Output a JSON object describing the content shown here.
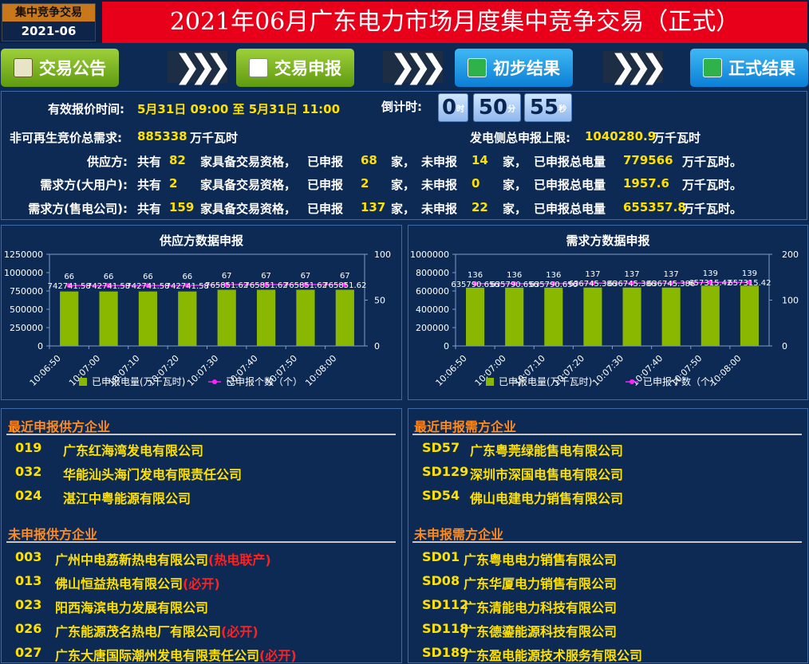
{
  "header": {
    "badge_top": "集中竞争交易",
    "badge_bottom": "2021-06",
    "title": "2021年06月广东电力市场月度集中竞争交易（正式）"
  },
  "nav": {
    "announce": "交易公告",
    "declare": "交易申报",
    "prelim": "初步结果",
    "final": "正式结果",
    "arrow": "❯❯❯"
  },
  "info": {
    "time_label": "有效报价时间:",
    "time_value": "5月31日 09:00 至 5月31日 11:00",
    "countdown_label": "倒计时:",
    "countdown": {
      "h": "0",
      "h_unit": "时",
      "m": "50",
      "m_unit": "分",
      "s": "55",
      "s_unit": "秒"
    },
    "demand_label": "非可再生竞价总需求:",
    "demand_value": "885338",
    "demand_unit": "万千瓦时",
    "gen_label": "发电侧总申报上限:",
    "gen_value": "1040280.9",
    "gen_unit": "万千瓦时",
    "rows": [
      {
        "name": "供应方:",
        "total": "82",
        "declared": "68",
        "undeclared": "14",
        "amount": "779566"
      },
      {
        "name": "需求方(大用户):",
        "total": "2",
        "declared": "2",
        "undeclared": "0",
        "amount": "1957.6"
      },
      {
        "name": "需求方(售电公司):",
        "total": "159",
        "declared": "137",
        "undeclared": "22",
        "amount": "655357.8"
      }
    ],
    "w_total": "共有",
    "w_qual": "家具备交易资格，",
    "w_declared": "已申报",
    "w_jia1": "家，",
    "w_undeclared": "未申报",
    "w_jia2": "家，",
    "w_amount": "已申报总电量",
    "w_end": "万千瓦时。"
  },
  "chart_data": [
    {
      "type": "bar",
      "title": "供应方数据申报",
      "categories": [
        "10:06:50",
        "10:07:00",
        "10:07:10",
        "10:07:20",
        "10:07:30",
        "10:07:40",
        "10:07:50",
        "10:08:00"
      ],
      "ylim": [
        0,
        1250000
      ],
      "y_ticks": [
        "1250000",
        "1000000",
        "750000",
        "500000",
        "250000",
        "0"
      ],
      "y2lim": [
        0,
        100
      ],
      "y2_ticks": [
        "100",
        "50",
        "0"
      ],
      "series": [
        {
          "name": "已申报电量(万千瓦时)",
          "kind": "bar",
          "values": [
            742741.58,
            742741.58,
            742741.58,
            742741.58,
            765851.62,
            765851.62,
            765851.62,
            765851.62
          ],
          "labels": [
            "742741.58",
            "742741.58",
            "742741.58",
            "742741.58",
            "765851.62",
            "765851.62",
            "765851.62",
            "765851.62"
          ],
          "color": "#8ab800"
        },
        {
          "name": "已申报个数（个）",
          "kind": "line",
          "axis": "right",
          "values": [
            66,
            66,
            66,
            66,
            67,
            67,
            67,
            67
          ],
          "color": "#ff22ff"
        }
      ]
    },
    {
      "type": "bar",
      "title": "需求方数据申报",
      "categories": [
        "10:06:50",
        "10:07:00",
        "10:07:10",
        "10:07:20",
        "10:07:30",
        "10:07:40",
        "10:07:50",
        "10:08:00"
      ],
      "ylim": [
        0,
        1000000
      ],
      "y_ticks": [
        "1000000",
        "800000",
        "600000",
        "400000",
        "200000",
        "0"
      ],
      "y2lim": [
        0,
        200
      ],
      "y2_ticks": [
        "200",
        "100",
        "0"
      ],
      "series": [
        {
          "name": "已申报电量(万千瓦时)",
          "kind": "bar",
          "values": [
            635790.656,
            635790.656,
            635790.656,
            636745.386,
            636745.386,
            636745.386,
            657315.42,
            657315.42
          ],
          "labels": [
            "635790.656",
            "635790.656",
            "635790.656",
            "636745.386",
            "636745.386",
            "636745.386",
            "657315.42",
            "657315.42"
          ],
          "color": "#8ab800"
        },
        {
          "name": "已申报个数（个）",
          "kind": "line",
          "axis": "right",
          "values": [
            136,
            136,
            136,
            137,
            137,
            137,
            139,
            139
          ],
          "color": "#ff22ff"
        }
      ]
    }
  ],
  "lists": {
    "recent_supply_title": "最近申报供方企业",
    "recent_supply": [
      {
        "code": "019",
        "name": "广东红海湾发电有限公司"
      },
      {
        "code": "032",
        "name": "华能汕头海门发电有限责任公司"
      },
      {
        "code": "024",
        "name": "湛江中粤能源有限公司"
      }
    ],
    "undeclared_supply_title": "未申报供方企业",
    "undeclared_supply": [
      {
        "code": "003",
        "name": "广州中电荔新热电有限公司",
        "note": "(热电联产)"
      },
      {
        "code": "013",
        "name": "佛山恒益热电有限公司",
        "note": "(必开)"
      },
      {
        "code": "023",
        "name": "阳西海滨电力发展有限公司",
        "note": ""
      },
      {
        "code": "026",
        "name": "广东能源茂名热电厂有限公司",
        "note": "(必开)"
      },
      {
        "code": "027",
        "name": "广东大唐国际潮州发电有限责任公司",
        "note": "(必开)"
      }
    ],
    "recent_demand_title": "最近申报需方企业",
    "recent_demand": [
      {
        "code": "SD57",
        "name": "广东粤莞绿能售电有限公司"
      },
      {
        "code": "SD129",
        "name": "深圳市深国电售电有限公司"
      },
      {
        "code": "SD54",
        "name": "佛山电建电力销售有限公司"
      }
    ],
    "undeclared_demand_title": "未申报需方企业",
    "undeclared_demand": [
      {
        "code": "SD01",
        "name": "广东粤电电力销售有限公司"
      },
      {
        "code": "SD08",
        "name": "广东华厦电力销售有限公司"
      },
      {
        "code": "SD112",
        "name": "广东清能电力科技有限公司"
      },
      {
        "code": "SD118",
        "name": "广东德鎏能源科技有限公司"
      },
      {
        "code": "SD189",
        "name": "广东盈电能源技术服务有限公司"
      }
    ]
  }
}
